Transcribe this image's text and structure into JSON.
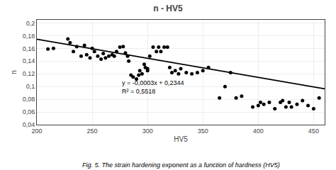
{
  "chart_data": {
    "type": "scatter",
    "title": "n - HV5",
    "xlabel": "HV5",
    "ylabel": "n",
    "caption": "Fig. 5. The strain hardening exponent as a function of hardness (HV5)",
    "annotations": [
      "y = -0,0003x + 0,2344",
      "R² = 0,5518"
    ],
    "xlim": [
      200,
      460
    ],
    "ylim": [
      0.04,
      0.205
    ],
    "xticks": [
      200,
      250,
      300,
      350,
      400,
      450
    ],
    "yticks": [
      {
        "value": 0.04,
        "label": "0,04"
      },
      {
        "value": 0.06,
        "label": "0,06"
      },
      {
        "value": 0.08,
        "label": "0,08"
      },
      {
        "value": 0.1,
        "label": "0,1"
      },
      {
        "value": 0.12,
        "label": "0,12"
      },
      {
        "value": 0.14,
        "label": "0,14"
      },
      {
        "value": 0.16,
        "label": "0,16"
      },
      {
        "value": 0.18,
        "label": "0,18"
      },
      {
        "value": 0.2,
        "label": "0,2"
      }
    ],
    "grid": true,
    "series": [
      {
        "type": "scatter",
        "marker": "circle",
        "color": "#000000",
        "x": [
          210,
          215,
          228,
          230,
          233,
          236,
          240,
          243,
          245,
          248,
          250,
          252,
          255,
          258,
          260,
          262,
          265,
          268,
          270,
          272,
          275,
          278,
          280,
          282,
          283,
          285,
          287,
          290,
          292,
          293,
          295,
          297,
          298,
          300,
          300,
          302,
          305,
          308,
          310,
          312,
          315,
          318,
          320,
          322,
          325,
          328,
          330,
          335,
          340,
          345,
          350,
          355,
          365,
          370,
          375,
          380,
          385,
          395,
          400,
          402,
          405,
          410,
          415,
          420,
          422,
          425,
          428,
          430,
          435,
          440,
          445,
          450,
          455
        ],
        "values": [
          0.159,
          0.16,
          0.175,
          0.169,
          0.155,
          0.163,
          0.148,
          0.165,
          0.15,
          0.145,
          0.16,
          0.155,
          0.148,
          0.143,
          0.152,
          0.145,
          0.148,
          0.15,
          0.148,
          0.155,
          0.162,
          0.163,
          0.153,
          0.148,
          0.14,
          0.118,
          0.115,
          0.112,
          0.118,
          0.125,
          0.12,
          0.135,
          0.13,
          0.125,
          0.128,
          0.148,
          0.162,
          0.155,
          0.162,
          0.155,
          0.162,
          0.162,
          0.13,
          0.122,
          0.125,
          0.12,
          0.128,
          0.122,
          0.12,
          0.122,
          0.125,
          0.13,
          0.082,
          0.1,
          0.122,
          0.082,
          0.085,
          0.068,
          0.07,
          0.075,
          0.072,
          0.075,
          0.065,
          0.075,
          0.078,
          0.068,
          0.075,
          0.068,
          0.072,
          0.078,
          0.07,
          0.065,
          0.082
        ]
      },
      {
        "type": "line",
        "line_style": "solid",
        "color": "#000000",
        "x": [
          200,
          460
        ],
        "values": [
          0.1744,
          0.0964
        ]
      }
    ]
  }
}
